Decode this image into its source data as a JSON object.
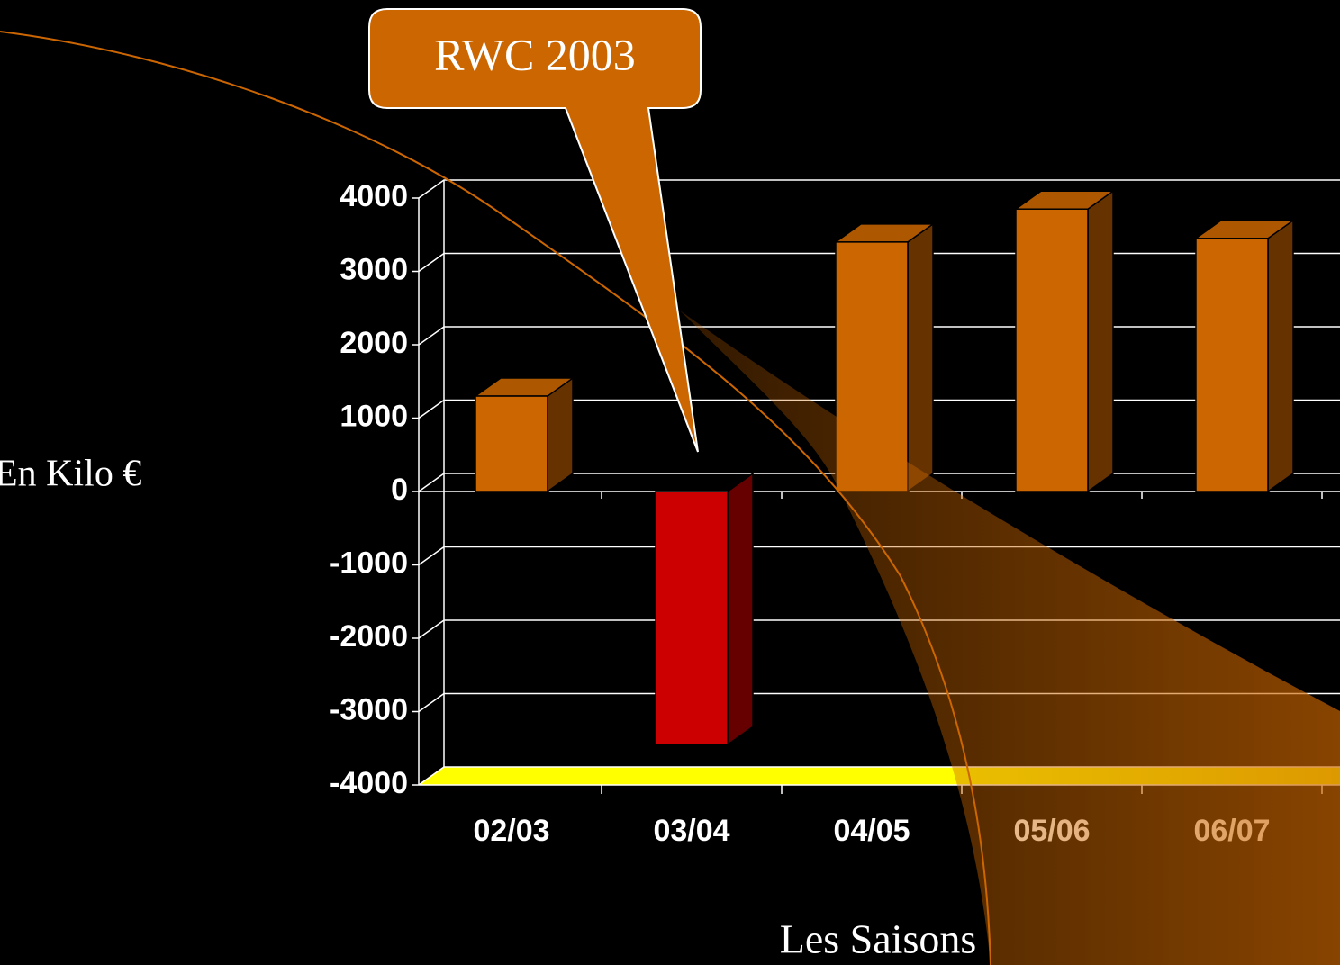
{
  "chart_data": {
    "type": "bar3d",
    "annotation": "RWC 2003",
    "y_axis_label": "En Kilo €",
    "x_axis_label": "Les Saisons",
    "categories": [
      "02/03",
      "03/04",
      "04/05",
      "05/06",
      "06/07"
    ],
    "values": [
      1300,
      -3450,
      3400,
      3850,
      3450
    ],
    "colors": [
      "#cc6600",
      "#cc0000",
      "#cc6600",
      "#cc6600",
      "#cc6600"
    ],
    "ylim": [
      -4000,
      4000
    ],
    "yticks": [
      -4000,
      -3000,
      -2000,
      -1000,
      0,
      1000,
      2000,
      3000,
      4000
    ],
    "grid": true,
    "floor_color": "#ffff00"
  }
}
